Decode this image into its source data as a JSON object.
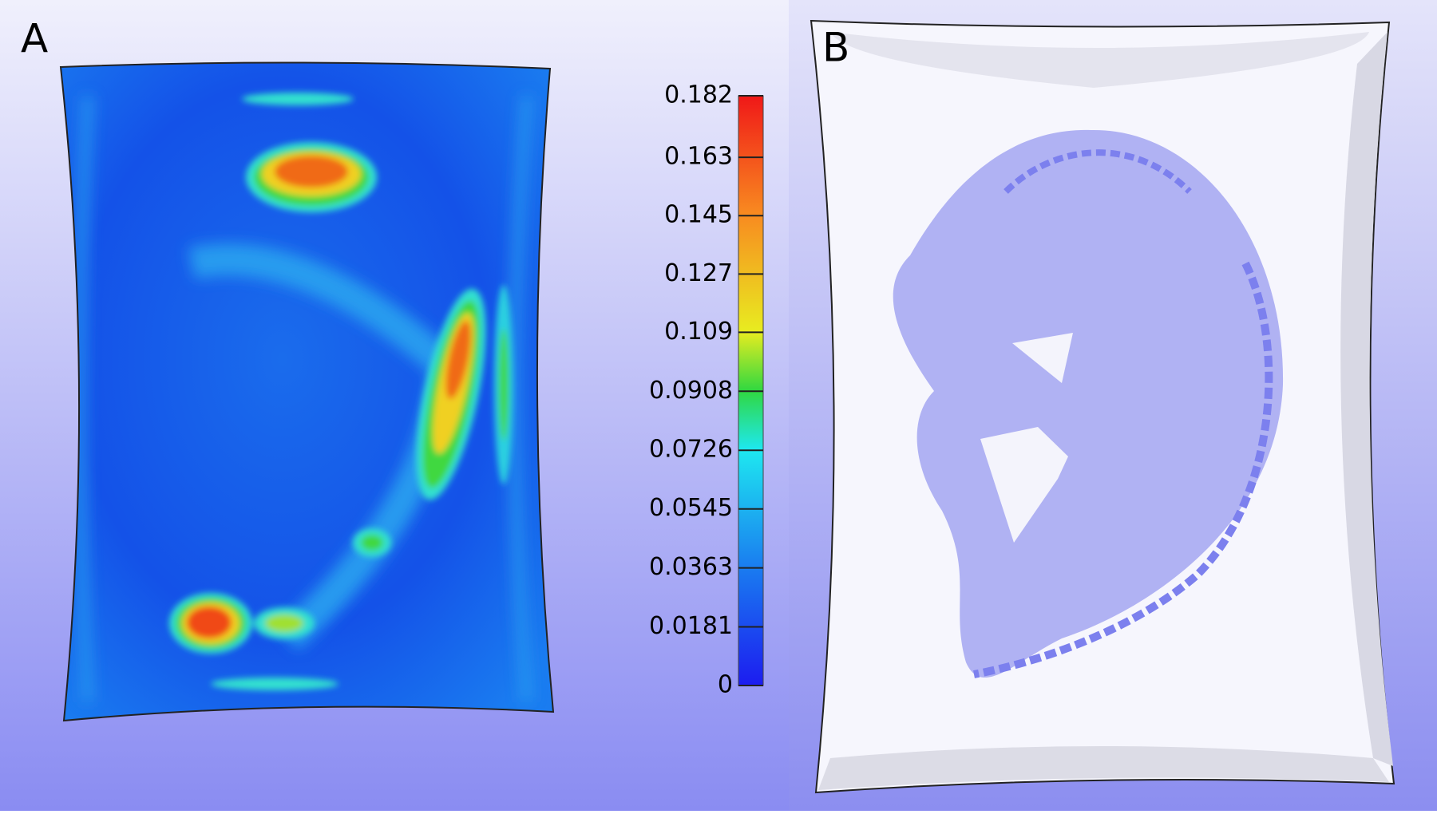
{
  "panels": [
    {
      "label": "A"
    },
    {
      "label": "B"
    }
  ],
  "colorbar": {
    "lim": [
      0,
      0.182
    ],
    "ticks": [
      0,
      0.0181,
      0.0363,
      0.0545,
      0.0726,
      0.0908,
      0.109,
      0.127,
      0.145,
      0.163,
      0.182
    ]
  }
}
